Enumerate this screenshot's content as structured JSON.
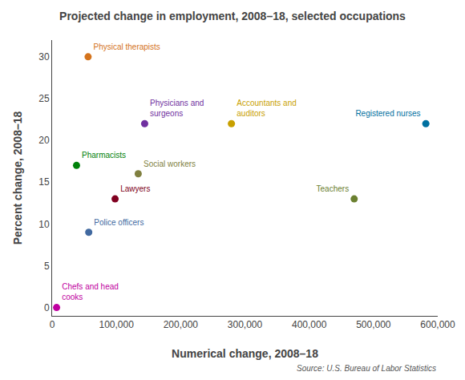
{
  "chart_data": {
    "type": "scatter",
    "title": "Projected change in employment, 2008–18, selected occupations",
    "xlabel": "Numerical change, 2008–18",
    "ylabel": "Percent change, 2008–18",
    "annotations": [
      "Source: U.S. Bureau of Labor Statistics"
    ],
    "labels": [
      "Physical therapists",
      "Physicians and\nsurgeons",
      "Accountants and\nauditors",
      "Registered nurses",
      "Pharmacists",
      "Social workers",
      "Lawyers",
      "Teachers",
      "Police officers",
      "Chefs and head\ncooks"
    ],
    "x": [
      56000,
      144000,
      279000,
      581500,
      38000,
      134000,
      98000,
      470000,
      57000,
      7000
    ],
    "values": [
      30,
      22,
      22,
      22,
      17,
      16,
      13,
      13,
      9,
      0
    ],
    "colors": [
      "#d4731c",
      "#7030a0",
      "#c8a000",
      "#0070a0",
      "#00820a",
      "#808040",
      "#800020",
      "#6b8030",
      "#4169a0",
      "#c000a0"
    ],
    "xlim": [
      0,
      600000
    ],
    "ylim": [
      -1,
      32
    ],
    "xticks": [
      0,
      {
        "value": 100000,
        "label": "100,000"
      },
      {
        "value": 200000,
        "label": "200,000"
      },
      {
        "value": 300000,
        "label": "300,000"
      },
      {
        "value": 400000,
        "label": "400,000"
      },
      {
        "value": 500000,
        "label": "500,000"
      },
      {
        "value": 600000,
        "label": "600,000"
      }
    ],
    "yticks": [
      0,
      5,
      10,
      15,
      20,
      25,
      30
    ],
    "grid": false
  }
}
